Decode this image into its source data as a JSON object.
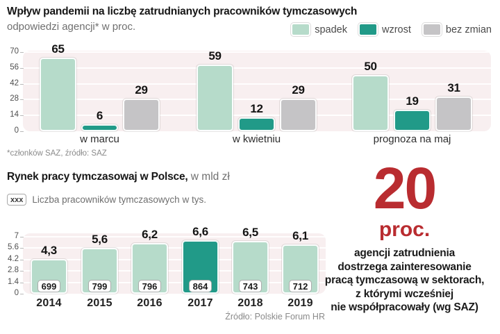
{
  "colors": {
    "spadek": "#b6dbca",
    "wzrost": "#219a88",
    "bez_zmian": "#c5c4c6",
    "plot_bg": "#f8eff0",
    "accent_red": "#b92c30"
  },
  "series_colors": [
    "#b6dbca",
    "#219a88",
    "#c5c4c6"
  ],
  "ui": {
    "chart2_title_bold": "Rynek pracy tymczasowaj w Polsce,",
    "chart2_title_unit": " w mld zł",
    "legend2_box_label": "xxx",
    "legend2_text": "Liczba pracowników tymczasowych w tys.",
    "callout": {
      "number": "20",
      "unit": "proc.",
      "lines": [
        "agencji zatrudnienia",
        "dostrzega zainteresowanie",
        "pracą tymczasową w sektorach,",
        "z którymi wcześniej",
        "nie współpracowały (wg SAZ)"
      ]
    }
  },
  "chart_data": [
    {
      "type": "bar",
      "title": "Wpływ pandemii na liczbę zatrudnianych pracowników tymczasowych",
      "subtitle": "odpowiedzi agencji* w proc.",
      "categories": [
        "w marcu",
        "w kwietniu",
        "prognoza na maj"
      ],
      "series": [
        {
          "name": "spadek",
          "values": [
            65,
            59,
            50
          ]
        },
        {
          "name": "wzrost",
          "values": [
            6,
            12,
            19
          ]
        },
        {
          "name": "bez zmian",
          "values": [
            29,
            29,
            31
          ]
        }
      ],
      "ylim": [
        0,
        70
      ],
      "y_ticks": [
        0,
        14,
        28,
        42,
        56,
        70
      ],
      "grid": true,
      "legend_position": "top-right",
      "footnote": "*członków SAZ, źródło: SAZ"
    },
    {
      "type": "bar",
      "title": "Rynek pracy tymczasowaj w Polsce, w mld zł",
      "categories": [
        "2014",
        "2015",
        "2016",
        "2017",
        "2018",
        "2019"
      ],
      "values": [
        4.3,
        5.6,
        6.2,
        6.6,
        6.5,
        6.1
      ],
      "secondary_label": "Liczba pracowników tymczasowych w tys.",
      "secondary_values": [
        699,
        799,
        796,
        864,
        743,
        712
      ],
      "highlight_category": "2017",
      "ylim": [
        0,
        7
      ],
      "y_ticks": [
        0,
        1.4,
        2.8,
        4.2,
        5.6,
        7
      ],
      "grid": true,
      "source": "Źródło: Polskie Forum HR"
    }
  ]
}
